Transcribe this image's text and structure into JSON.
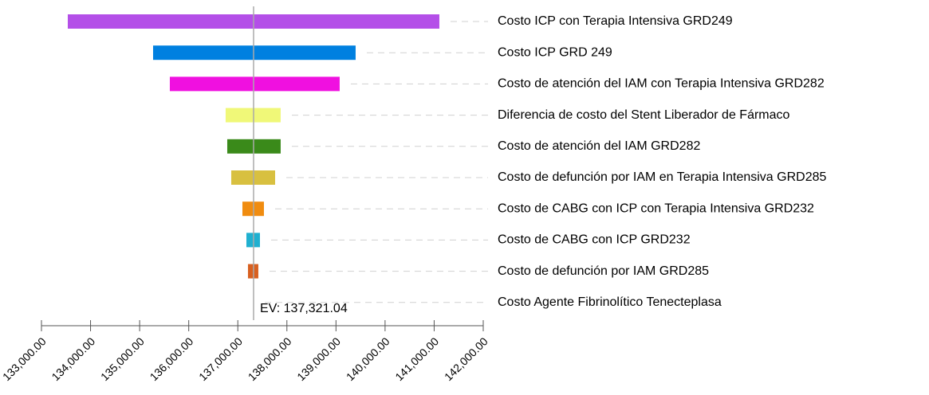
{
  "chart_data": {
    "type": "tornado",
    "categories": [
      "Costo ICP con Terapia Intensiva GRD249",
      "Costo ICP GRD 249",
      "Costo de atención del IAM con Terapia Intensiva GRD282",
      "Diferencia de costo del Stent Liberador de Fármaco",
      "Costo de atención del IAM GRD282",
      "Costo de defunción por IAM en Terapia Intensiva GRD285",
      "Costo de CABG con ICP con Terapia Intensiva GRD232",
      "Costo de CABG con ICP GRD232",
      "Costo de defunción por IAM GRD285",
      "Costo Agente Fibrinolítico Tenecteplasa"
    ],
    "low": [
      133536,
      135274,
      135615,
      136752,
      136785,
      136866,
      137094,
      137175,
      137207,
      137321.04
    ],
    "high": [
      141106,
      139400,
      139075,
      137873,
      137873,
      137760,
      137532,
      137451,
      137418,
      137321.04
    ],
    "colors": [
      "#b44fe8",
      "#0080e0",
      "#f010e0",
      "#f0f878",
      "#3a8a1a",
      "#d8c040",
      "#f08c10",
      "#20b0d0",
      "#d86020",
      "#888888"
    ],
    "ev": 137321.04,
    "ev_label": "EV: 137,321.04",
    "xlim": [
      133000,
      142000
    ],
    "xticks": [
      {
        "value": 133000,
        "label": "133,000.00"
      },
      {
        "value": 134000,
        "label": "134,000.00"
      },
      {
        "value": 135000,
        "label": "135,000.00"
      },
      {
        "value": 136000,
        "label": "136,000.00"
      },
      {
        "value": 137000,
        "label": "137,000.00"
      },
      {
        "value": 138000,
        "label": "138,000.00"
      },
      {
        "value": 139000,
        "label": "139,000.00"
      },
      {
        "value": 140000,
        "label": "140,000.00"
      },
      {
        "value": 141000,
        "label": "141,000.00"
      },
      {
        "value": 142000,
        "label": "142,000.00"
      }
    ]
  }
}
